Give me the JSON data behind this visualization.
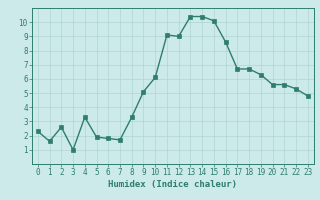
{
  "x": [
    0,
    1,
    2,
    3,
    4,
    5,
    6,
    7,
    8,
    9,
    10,
    11,
    12,
    13,
    14,
    15,
    16,
    17,
    18,
    19,
    20,
    21,
    22,
    23
  ],
  "y": [
    2.3,
    1.6,
    2.6,
    1.0,
    3.3,
    1.9,
    1.8,
    1.7,
    3.3,
    5.1,
    6.1,
    9.1,
    9.0,
    10.4,
    10.4,
    10.1,
    8.6,
    6.7,
    6.7,
    6.3,
    5.6,
    5.6,
    5.3,
    4.8
  ],
  "xlabel": "Humidex (Indice chaleur)",
  "xlim": [
    -0.5,
    23.5
  ],
  "ylim": [
    0,
    11
  ],
  "yticks": [
    1,
    2,
    3,
    4,
    5,
    6,
    7,
    8,
    9,
    10
  ],
  "xticks": [
    0,
    1,
    2,
    3,
    4,
    5,
    6,
    7,
    8,
    9,
    10,
    11,
    12,
    13,
    14,
    15,
    16,
    17,
    18,
    19,
    20,
    21,
    22,
    23
  ],
  "line_color": "#2e7d6e",
  "marker_color": "#2e7d6e",
  "bg_color": "#cdeaea",
  "grid_color": "#afd4d4",
  "axes_color": "#2e7d6e",
  "label_color": "#2e7d6e",
  "tick_color": "#2e7d6e",
  "xlabel_fontsize": 6.5,
  "tick_fontsize": 5.5,
  "linewidth": 1.0,
  "markersize": 2.2
}
